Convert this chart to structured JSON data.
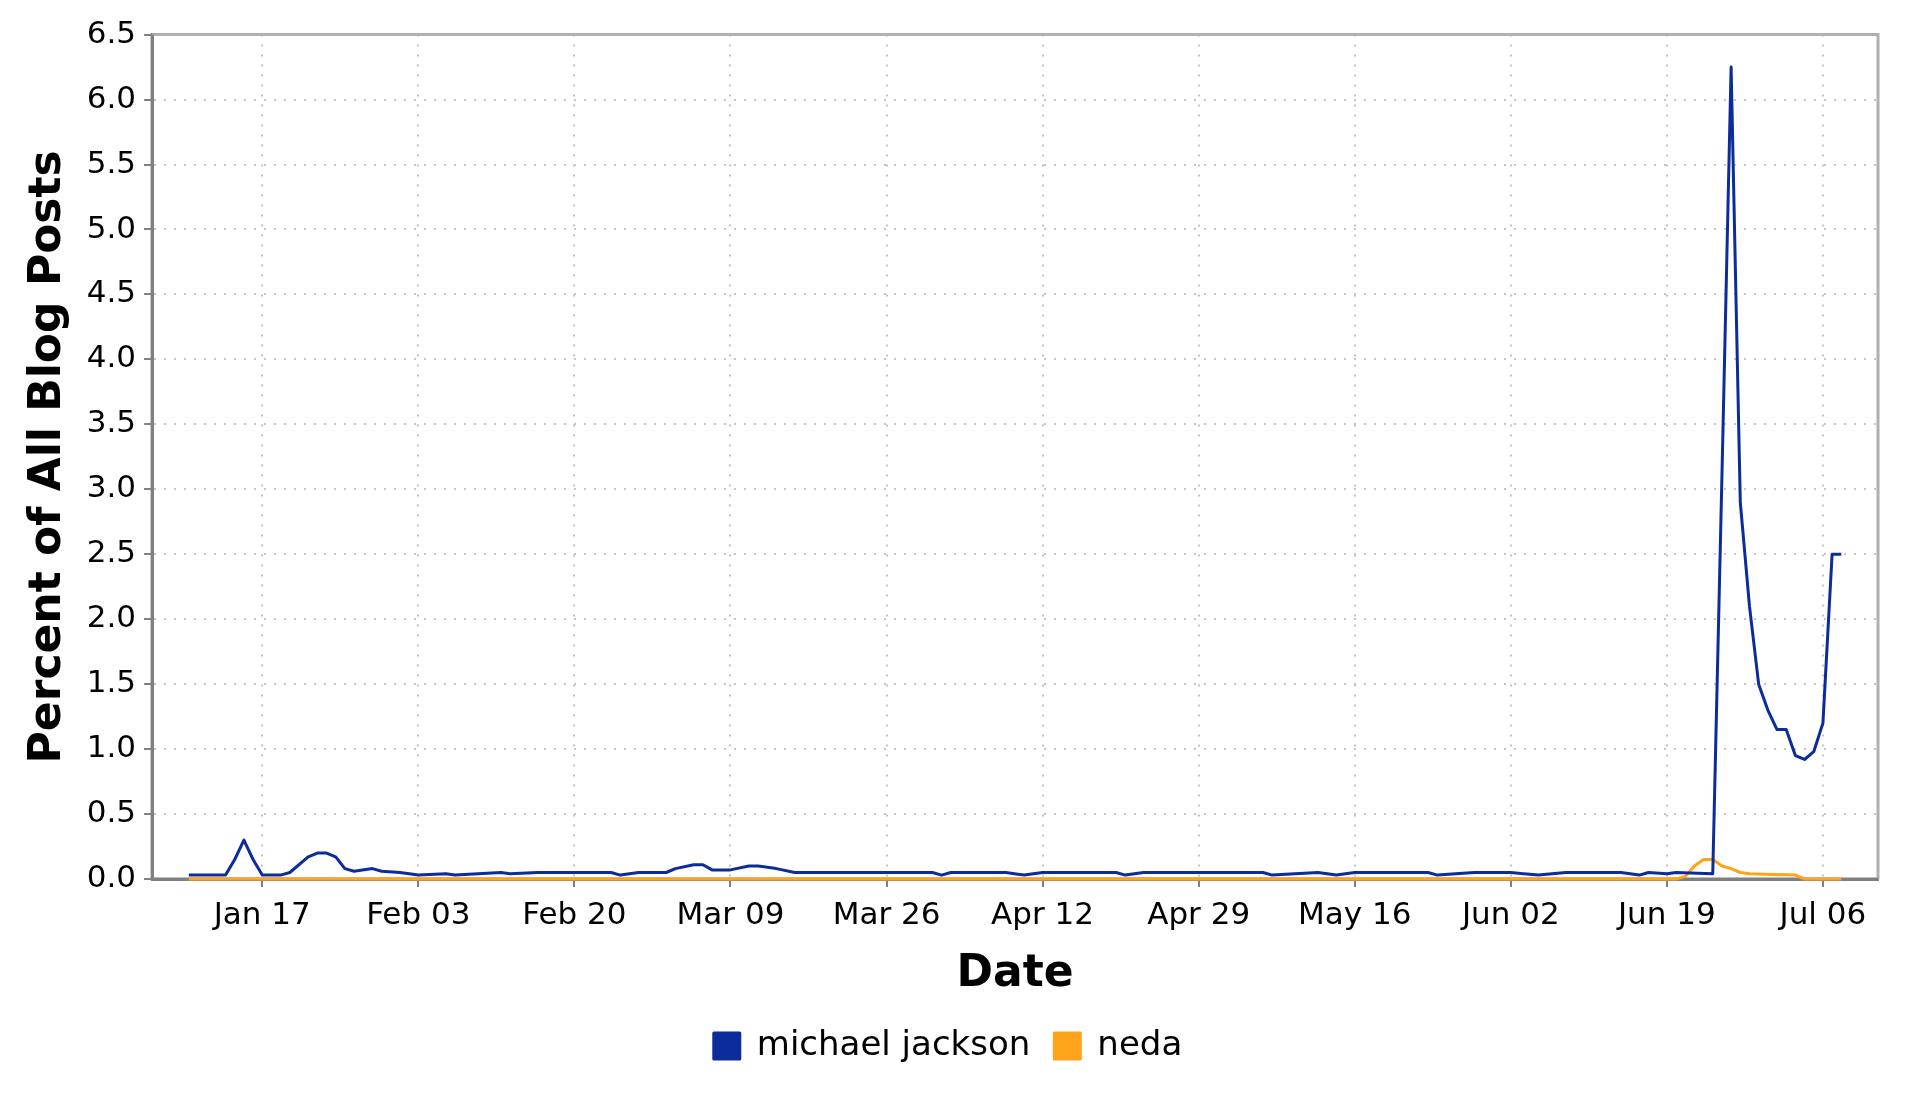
{
  "chart_data": {
    "type": "line",
    "xlabel": "Date",
    "ylabel": "Percent of All Blog Posts",
    "xlim": [
      "--01-05",
      "--07-12"
    ],
    "xticks": [
      {
        "value": "--01-17",
        "label": "Jan 17"
      },
      {
        "value": "--02-03",
        "label": "Feb 03"
      },
      {
        "value": "--02-20",
        "label": "Feb 20"
      },
      {
        "value": "--03-09",
        "label": "Mar 09"
      },
      {
        "value": "--03-26",
        "label": "Mar 26"
      },
      {
        "value": "--04-12",
        "label": "Apr 12"
      },
      {
        "value": "--04-29",
        "label": "Apr 29"
      },
      {
        "value": "--05-16",
        "label": "May 16"
      },
      {
        "value": "--06-02",
        "label": "Jun 02"
      },
      {
        "value": "--06-19",
        "label": "Jun 19"
      },
      {
        "value": "--07-06",
        "label": "Jul 06"
      }
    ],
    "ylim": [
      0,
      6.5
    ],
    "yticks": [
      {
        "value": 0,
        "label": "0.0"
      },
      {
        "value": 0.5,
        "label": "0.5"
      },
      {
        "value": 1,
        "label": "1.0"
      },
      {
        "value": 1.5,
        "label": "1.5"
      },
      {
        "value": 2,
        "label": "2.0"
      },
      {
        "value": 2.5,
        "label": "2.5"
      },
      {
        "value": 3,
        "label": "3.0"
      },
      {
        "value": 3.5,
        "label": "3.5"
      },
      {
        "value": 4,
        "label": "4.0"
      },
      {
        "value": 4.5,
        "label": "4.5"
      },
      {
        "value": 5,
        "label": "5.0"
      },
      {
        "value": 5.5,
        "label": "5.5"
      },
      {
        "value": 6,
        "label": "6.0"
      },
      {
        "value": 6.5,
        "label": "6.5"
      }
    ],
    "grid": true,
    "legend": "bottom",
    "marker": "none",
    "line_style": "solid",
    "series": [
      {
        "name": "michael jackson",
        "color": "#0b2c9a",
        "x": [
          "--01-09",
          "--01-13",
          "--01-14",
          "--01-15",
          "--01-16",
          "--01-17",
          "--01-19",
          "--01-20",
          "--01-22",
          "--01-23",
          "--01-24",
          "--01-25",
          "--01-26",
          "--01-27",
          "--01-29",
          "--01-30",
          "--02-01",
          "--02-03",
          "--02-06",
          "--02-07",
          "--02-12",
          "--02-13",
          "--02-16",
          "--02-24",
          "--02-25",
          "--02-27",
          "--03-02",
          "--03-03",
          "--03-05",
          "--03-06",
          "--03-07",
          "--03-09",
          "--03-11",
          "--03-12",
          "--03-14",
          "--03-16",
          "--03-31",
          "--04-01",
          "--04-02",
          "--04-08",
          "--04-10",
          "--04-12",
          "--04-20",
          "--04-21",
          "--04-23",
          "--05-06",
          "--05-07",
          "--05-12",
          "--05-14",
          "--05-16",
          "--05-24",
          "--05-25",
          "--05-29",
          "--06-02",
          "--06-05",
          "--06-08",
          "--06-14",
          "--06-16",
          "--06-17",
          "--06-19",
          "--06-20",
          "--06-24",
          "--06-25",
          "--06-26",
          "--06-27",
          "--06-28",
          "--06-29",
          "--06-30",
          "--07-01",
          "--07-02",
          "--07-03",
          "--07-04",
          "--07-05",
          "--07-06",
          "--07-07",
          "--07-08"
        ],
        "values": [
          0.03,
          0.03,
          0.15,
          0.3,
          0.15,
          0.03,
          0.03,
          0.05,
          0.17,
          0.2,
          0.2,
          0.17,
          0.08,
          0.06,
          0.08,
          0.06,
          0.05,
          0.03,
          0.04,
          0.03,
          0.05,
          0.04,
          0.05,
          0.05,
          0.03,
          0.05,
          0.05,
          0.08,
          0.11,
          0.11,
          0.07,
          0.07,
          0.1,
          0.1,
          0.08,
          0.05,
          0.05,
          0.03,
          0.05,
          0.05,
          0.03,
          0.05,
          0.05,
          0.03,
          0.05,
          0.05,
          0.03,
          0.05,
          0.03,
          0.05,
          0.05,
          0.03,
          0.05,
          0.05,
          0.03,
          0.05,
          0.05,
          0.03,
          0.05,
          0.04,
          0.05,
          0.04,
          3.1,
          6.25,
          2.9,
          2.1,
          1.5,
          1.3,
          1.15,
          1.15,
          0.95,
          0.92,
          0.98,
          1.2,
          2.5,
          2.5
        ]
      },
      {
        "name": "neda",
        "color": "#ffa31a",
        "x": [
          "--01-09",
          "--06-20",
          "--06-21",
          "--06-22",
          "--06-23",
          "--06-24",
          "--06-25",
          "--06-26",
          "--06-27",
          "--06-28",
          "--07-03",
          "--07-04",
          "--07-08"
        ],
        "values": [
          0,
          0,
          0.02,
          0.1,
          0.15,
          0.15,
          0.1,
          0.08,
          0.05,
          0.04,
          0.03,
          0,
          0
        ]
      }
    ]
  }
}
